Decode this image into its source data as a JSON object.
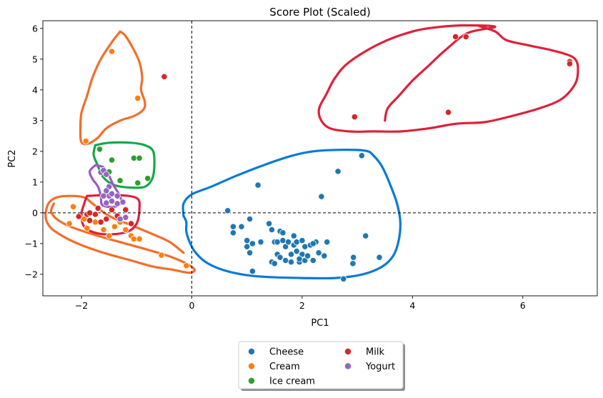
{
  "chart_data": {
    "type": "scatter",
    "title": "Score Plot (Scaled)",
    "xlabel": "PC1",
    "ylabel": "PC2",
    "xlim": [
      -2.7,
      7.35
    ],
    "ylim": [
      -2.7,
      6.25
    ],
    "xticks": [
      -2,
      0,
      2,
      4,
      6
    ],
    "yticks": [
      -2,
      -1,
      0,
      1,
      2,
      3,
      4,
      5,
      6
    ],
    "tick_labels_x": [
      "−2",
      "0",
      "2",
      "4",
      "6"
    ],
    "tick_labels_y": [
      "−2",
      "−1",
      "0",
      "1",
      "2",
      "3",
      "4",
      "5",
      "6"
    ],
    "reference_lines": {
      "x": 0,
      "y": 0,
      "style": "dashed"
    },
    "grid": false,
    "legend": {
      "placement": "bottom-center",
      "columns": 2
    },
    "series": [
      {
        "name": "Cheese",
        "color": "#1f77b4",
        "contour_color": "#0a7ad6",
        "points": [
          [
            0.65,
            0.07
          ],
          [
            0.75,
            -0.45
          ],
          [
            0.75,
            -0.65
          ],
          [
            0.9,
            -0.45
          ],
          [
            1.0,
            -0.9
          ],
          [
            1.0,
            -1.1
          ],
          [
            1.05,
            -1.3
          ],
          [
            1.1,
            -1.0
          ],
          [
            1.05,
            -0.2
          ],
          [
            1.1,
            -1.9
          ],
          [
            1.2,
            0.9
          ],
          [
            1.25,
            -0.95
          ],
          [
            1.4,
            -0.35
          ],
          [
            1.45,
            -0.55
          ],
          [
            1.45,
            -1.6
          ],
          [
            1.5,
            -1.65
          ],
          [
            1.5,
            -0.95
          ],
          [
            1.55,
            -0.95
          ],
          [
            1.55,
            -1.35
          ],
          [
            1.6,
            -0.6
          ],
          [
            1.6,
            -1.45
          ],
          [
            1.65,
            -0.65
          ],
          [
            1.65,
            -0.9
          ],
          [
            1.7,
            -1.1
          ],
          [
            1.7,
            -1.55
          ],
          [
            1.75,
            -0.95
          ],
          [
            1.8,
            -1.6
          ],
          [
            1.8,
            -1.35
          ],
          [
            1.85,
            -0.75
          ],
          [
            1.85,
            -1.05
          ],
          [
            1.9,
            -0.95
          ],
          [
            1.9,
            -1.25
          ],
          [
            1.95,
            -1.6
          ],
          [
            2.0,
            -0.9
          ],
          [
            2.0,
            -1.35
          ],
          [
            2.05,
            -1.1
          ],
          [
            2.05,
            -1.55
          ],
          [
            2.1,
            -1.4
          ],
          [
            2.15,
            -1.05
          ],
          [
            2.2,
            -1.55
          ],
          [
            2.25,
            -0.95
          ],
          [
            2.3,
            -1.3
          ],
          [
            2.35,
            0.53
          ],
          [
            2.4,
            -1.4
          ],
          [
            2.45,
            -0.95
          ],
          [
            2.65,
            1.35
          ],
          [
            2.75,
            -2.15
          ],
          [
            2.92,
            -1.65
          ],
          [
            2.93,
            -1.45
          ],
          [
            3.08,
            1.86
          ],
          [
            3.15,
            -0.75
          ],
          [
            3.4,
            -1.45
          ],
          [
            2.2,
            -1.0
          ],
          [
            1.95,
            -1.5
          ]
        ]
      },
      {
        "name": "Cream",
        "color": "#ff7f0e",
        "contour_color": "#f26e2a",
        "points": [
          [
            -1.45,
            5.25
          ],
          [
            -0.98,
            3.73
          ],
          [
            -1.92,
            2.33
          ],
          [
            -2.22,
            -0.35
          ],
          [
            -2.15,
            0.2
          ],
          [
            -1.95,
            -0.2
          ],
          [
            -1.9,
            -0.5
          ],
          [
            -1.75,
            -0.3
          ],
          [
            -1.6,
            -0.55
          ],
          [
            -1.5,
            -0.75
          ],
          [
            -1.4,
            -0.45
          ],
          [
            -1.3,
            -0.3
          ],
          [
            -1.2,
            -0.55
          ],
          [
            -1.1,
            -0.75
          ],
          [
            -1.05,
            -0.85
          ],
          [
            -0.95,
            -0.85
          ],
          [
            -0.55,
            -1.38
          ],
          [
            -0.1,
            -1.72
          ]
        ]
      },
      {
        "name": "Ice cream",
        "color": "#2ca02c",
        "contour_color": "#14a84a",
        "points": [
          [
            -1.67,
            2.07
          ],
          [
            -1.45,
            1.72
          ],
          [
            -1.5,
            1.33
          ],
          [
            -1.3,
            1.05
          ],
          [
            -1.05,
            1.78
          ],
          [
            -0.95,
            1.78
          ],
          [
            -0.98,
            0.97
          ],
          [
            -0.8,
            1.12
          ]
        ]
      },
      {
        "name": "Milk",
        "color": "#d62728",
        "contour_color": "#e0203a",
        "points": [
          [
            -0.5,
            4.43
          ],
          [
            4.78,
            5.73
          ],
          [
            4.97,
            5.73
          ],
          [
            6.85,
            4.92
          ],
          [
            6.85,
            4.85
          ],
          [
            4.65,
            3.27
          ],
          [
            2.95,
            3.12
          ],
          [
            -2.05,
            -0.12
          ],
          [
            -1.9,
            -0.05
          ],
          [
            -1.85,
            0.0
          ],
          [
            -1.75,
            -0.05
          ],
          [
            -1.7,
            0.15
          ],
          [
            -1.65,
            -0.3
          ],
          [
            -1.55,
            -0.2
          ],
          [
            -1.45,
            0.1
          ],
          [
            -1.35,
            -0.1
          ],
          [
            -1.2,
            0.1
          ],
          [
            -1.1,
            -0.35
          ],
          [
            -1.85,
            -0.25
          ]
        ]
      },
      {
        "name": "Yogurt",
        "color": "#9467bd",
        "contour_color": "#9b59c6",
        "points": [
          [
            -1.65,
            1.32
          ],
          [
            -1.6,
            1.38
          ],
          [
            -1.55,
            1.25
          ],
          [
            -1.5,
            0.85
          ],
          [
            -1.55,
            0.72
          ],
          [
            -1.5,
            0.55
          ],
          [
            -1.45,
            0.38
          ],
          [
            -1.55,
            0.32
          ],
          [
            -1.35,
            0.3
          ],
          [
            -1.25,
            0.35
          ],
          [
            -1.45,
            0.62
          ],
          [
            -1.6,
            0.55
          ],
          [
            -1.35,
            0.55
          ],
          [
            -1.2,
            -0.15
          ],
          [
            -1.3,
            -0.2
          ]
        ]
      }
    ],
    "contours": [
      {
        "series": "Cheese",
        "path": [
          [
            -0.15,
            -0.1
          ],
          [
            -0.1,
            -0.3
          ],
          [
            -0.1,
            -0.6
          ],
          [
            -0.05,
            -0.9
          ],
          [
            0.05,
            -1.25
          ],
          [
            0.25,
            -1.6
          ],
          [
            0.55,
            -1.85
          ],
          [
            0.9,
            -2.0
          ],
          [
            1.3,
            -2.08
          ],
          [
            2.0,
            -2.12
          ],
          [
            2.6,
            -2.12
          ],
          [
            3.1,
            -2.0
          ],
          [
            3.45,
            -1.75
          ],
          [
            3.65,
            -1.4
          ],
          [
            3.75,
            -0.9
          ],
          [
            3.78,
            -0.3
          ],
          [
            3.72,
            0.3
          ],
          [
            3.6,
            0.9
          ],
          [
            3.45,
            1.5
          ],
          [
            3.3,
            1.85
          ],
          [
            3.15,
            2.02
          ],
          [
            2.7,
            2.05
          ],
          [
            2.2,
            2.0
          ],
          [
            1.8,
            1.85
          ],
          [
            1.3,
            1.55
          ],
          [
            0.8,
            1.2
          ],
          [
            0.35,
            0.85
          ],
          [
            0.0,
            0.6
          ],
          [
            -0.15,
            0.3
          ],
          [
            -0.15,
            -0.1
          ]
        ]
      },
      {
        "series": "Cream",
        "path": [
          [
            -1.3,
            5.9
          ],
          [
            -1.2,
            5.75
          ],
          [
            -1.05,
            5.3
          ],
          [
            -0.95,
            4.9
          ],
          [
            -0.9,
            4.4
          ],
          [
            -0.92,
            4.0
          ],
          [
            -0.85,
            3.6
          ],
          [
            -0.88,
            3.35
          ],
          [
            -1.05,
            3.15
          ],
          [
            -1.3,
            3.0
          ],
          [
            -1.55,
            2.75
          ],
          [
            -1.7,
            2.45
          ],
          [
            -1.88,
            2.25
          ],
          [
            -2.0,
            2.3
          ],
          [
            -2.02,
            2.7
          ],
          [
            -2.0,
            3.25
          ],
          [
            -1.9,
            3.8
          ],
          [
            -1.8,
            4.4
          ],
          [
            -1.65,
            5.0
          ],
          [
            -1.45,
            5.55
          ],
          [
            -1.3,
            5.9
          ]
        ]
      },
      {
        "series": "Cream",
        "path": [
          [
            -2.5,
            0.3
          ],
          [
            -2.55,
            0.05
          ],
          [
            -2.45,
            -0.2
          ],
          [
            -2.2,
            -0.45
          ],
          [
            -1.7,
            -0.75
          ],
          [
            -1.2,
            -1.0
          ],
          [
            -0.8,
            -1.2
          ],
          [
            -0.4,
            -1.42
          ],
          [
            -0.1,
            -1.65
          ],
          [
            0.05,
            -1.85
          ],
          [
            -0.05,
            -1.95
          ],
          [
            -0.35,
            -1.85
          ],
          [
            -0.7,
            -1.75
          ],
          [
            -1.1,
            -1.55
          ],
          [
            -1.6,
            -1.3
          ],
          [
            -2.0,
            -1.05
          ],
          [
            -2.3,
            -0.8
          ],
          [
            -2.55,
            -0.5
          ],
          [
            -2.65,
            -0.15
          ],
          [
            -2.6,
            0.3
          ],
          [
            -2.45,
            0.5
          ],
          [
            -2.2,
            0.55
          ],
          [
            -1.95,
            0.5
          ],
          [
            -1.8,
            0.3
          ],
          [
            -1.5,
            -0.1
          ],
          [
            -1.1,
            -0.4
          ],
          [
            -0.7,
            -0.7
          ],
          [
            -0.4,
            -0.95
          ],
          [
            -0.15,
            -1.3
          ]
        ]
      },
      {
        "series": "Ice cream",
        "path": [
          [
            -1.75,
            2.2
          ],
          [
            -1.5,
            2.28
          ],
          [
            -1.1,
            2.28
          ],
          [
            -0.85,
            2.2
          ],
          [
            -0.7,
            2.0
          ],
          [
            -0.68,
            1.5
          ],
          [
            -0.72,
            1.1
          ],
          [
            -0.85,
            0.85
          ],
          [
            -1.1,
            0.82
          ],
          [
            -1.4,
            0.9
          ],
          [
            -1.6,
            1.15
          ],
          [
            -1.72,
            1.6
          ],
          [
            -1.78,
            1.9
          ],
          [
            -1.75,
            2.2
          ]
        ]
      },
      {
        "series": "Milk",
        "path": [
          [
            -1.9,
            0.55
          ],
          [
            -1.4,
            0.58
          ],
          [
            -1.0,
            0.48
          ],
          [
            -0.95,
            0.1
          ],
          [
            -1.0,
            -0.35
          ],
          [
            -1.15,
            -0.6
          ],
          [
            -1.45,
            -0.7
          ],
          [
            -1.75,
            -0.65
          ],
          [
            -1.95,
            -0.45
          ],
          [
            -2.0,
            -0.05
          ],
          [
            -1.95,
            0.3
          ],
          [
            -1.9,
            0.55
          ]
        ]
      },
      {
        "series": "Milk",
        "path": [
          [
            3.5,
            3.0
          ],
          [
            3.55,
            3.4
          ],
          [
            3.75,
            3.8
          ],
          [
            4.0,
            4.3
          ],
          [
            4.3,
            4.8
          ],
          [
            4.6,
            5.3
          ],
          [
            5.0,
            5.85
          ],
          [
            5.5,
            6.05
          ],
          [
            5.0,
            6.1
          ],
          [
            4.5,
            6.05
          ],
          [
            4.0,
            5.9
          ],
          [
            3.4,
            5.5
          ],
          [
            2.85,
            4.9
          ],
          [
            2.6,
            4.4
          ],
          [
            2.45,
            3.9
          ],
          [
            2.3,
            3.3
          ],
          [
            2.45,
            2.8
          ],
          [
            2.85,
            2.65
          ],
          [
            3.3,
            2.65
          ],
          [
            3.8,
            2.65
          ],
          [
            4.3,
            2.75
          ],
          [
            4.8,
            2.9
          ],
          [
            5.3,
            2.95
          ],
          [
            5.8,
            3.15
          ],
          [
            6.3,
            3.4
          ],
          [
            6.7,
            3.7
          ],
          [
            6.95,
            4.2
          ],
          [
            7.0,
            4.7
          ],
          [
            6.95,
            5.0
          ],
          [
            6.8,
            5.15
          ],
          [
            6.5,
            5.3
          ],
          [
            6.1,
            5.45
          ],
          [
            5.7,
            5.62
          ],
          [
            5.5,
            5.9
          ],
          [
            5.2,
            6.08
          ]
        ]
      },
      {
        "series": "Yogurt",
        "path": [
          [
            -1.75,
            1.55
          ],
          [
            -1.6,
            1.48
          ],
          [
            -1.5,
            1.2
          ],
          [
            -1.42,
            0.9
          ],
          [
            -1.32,
            0.6
          ],
          [
            -1.28,
            0.35
          ],
          [
            -1.4,
            0.2
          ],
          [
            -1.62,
            0.25
          ],
          [
            -1.65,
            0.55
          ],
          [
            -1.7,
            0.85
          ],
          [
            -1.8,
            1.1
          ],
          [
            -1.85,
            1.35
          ],
          [
            -1.75,
            1.55
          ]
        ]
      }
    ]
  }
}
